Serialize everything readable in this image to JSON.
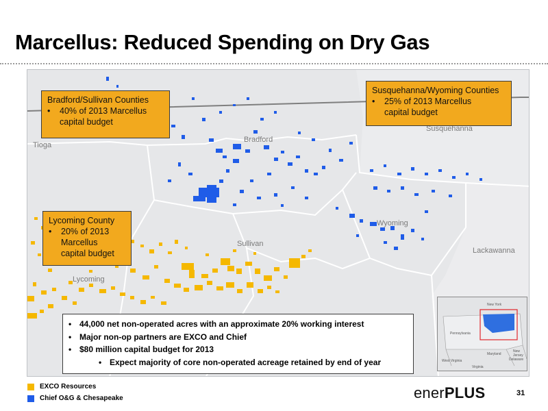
{
  "slide": {
    "title": "Marcellus: Reduced Spending on Dry Gas",
    "page_number": "31"
  },
  "map": {
    "county_labels": {
      "tioga": "Tioga",
      "bradford": "Bradford",
      "susquehanna": "Susquehanna",
      "wyoming": "Wyoming",
      "sullivan": "Sullivan",
      "lackawanna": "Lackawanna",
      "lycoming": "Lycoming"
    },
    "colors": {
      "background": "#e6e7e9",
      "county_line": "#ffffff",
      "state_line": "#7f7f7f",
      "chief_acreage": "#1f5ce8",
      "exco_acreage": "#f5b800",
      "callout_fill": "#f2a91e"
    }
  },
  "callouts": {
    "bradford": {
      "title": "Bradford/Sullivan Counties",
      "bullet_line1": "40% of 2013 Marcellus",
      "bullet_line2": "capital budget"
    },
    "susquehanna": {
      "title": "Susquehanna/Wyoming Counties",
      "bullet_line1": "25% of 2013 Marcellus",
      "bullet_line2": "capital budget"
    },
    "lycoming": {
      "title": "Lycoming County",
      "bullet_line1": "20% of 2013",
      "bullet_line2": "Marcellus",
      "bullet_line3": "capital budget"
    }
  },
  "info_box": {
    "bullets": [
      "44,000 net non-operated acres with an approximate 20% working interest",
      "Major non-op partners are EXCO and Chief",
      "$80 million capital budget for 2013"
    ],
    "sub_bullet": "Expect majority of core non-operated acreage retained by end of year"
  },
  "inset": {
    "labels": {
      "new_york": "New York",
      "pennsylvania": "Pennsylvania",
      "maryland": "Maryland",
      "new_jersey": "New Jersey",
      "delaware": "Delaware",
      "west_virginia": "West Virginia",
      "virginia": "Virginia"
    }
  },
  "legend": {
    "items": [
      {
        "label": "EXCO Resources",
        "color": "#f5b800"
      },
      {
        "label": "Chief O&G & Chesapeake",
        "color": "#1f5ce8"
      }
    ]
  },
  "logo": {
    "word1": "ener",
    "word2": "PLUS"
  }
}
